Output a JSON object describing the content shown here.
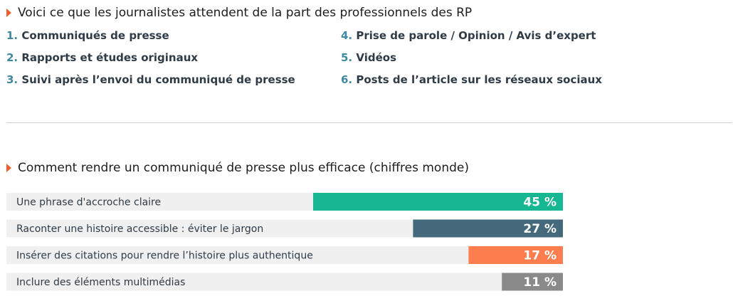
{
  "section1": {
    "title": "Voici ce que les journalistes attendent de la part des professionnels des RP",
    "items_left": [
      {
        "num": "1.",
        "text": "Communiqués de presse"
      },
      {
        "num": "2.",
        "text": "Rapports et études originaux"
      },
      {
        "num": "3.",
        "text": "Suivi après l’envoi du communiqué de presse"
      }
    ],
    "items_right": [
      {
        "num": "4.",
        "text": "Prise de parole / Opinion / Avis d’expert"
      },
      {
        "num": "5.",
        "text": "Vidéos"
      },
      {
        "num": "6.",
        "text": "Posts de l’article sur les réseaux sociaux"
      }
    ]
  },
  "section2": {
    "title": "Comment rendre un communiqué de presse plus efficace (chiffres monde)"
  },
  "chart_data": {
    "type": "bar",
    "orientation": "horizontal",
    "title": "Comment rendre un communiqué de presse plus efficace (chiffres monde)",
    "categories": [
      "Une phrase d'accroche claire",
      "Raconter une histoire accessible : éviter le jargon",
      "Insérer des citations pour rendre l’histoire plus authentique",
      "Inclure des éléments multimédias"
    ],
    "values": [
      45,
      27,
      17,
      11
    ],
    "value_labels": [
      "45 %",
      "27 %",
      "17 %",
      "11 %"
    ],
    "colors": [
      "#17b794",
      "#44697b",
      "#fd7d4f",
      "#8a8a8a"
    ],
    "track_color": "#f0f0f0",
    "unit": "%",
    "xlim": [
      0,
      100
    ],
    "grid": false,
    "legend": "none"
  }
}
